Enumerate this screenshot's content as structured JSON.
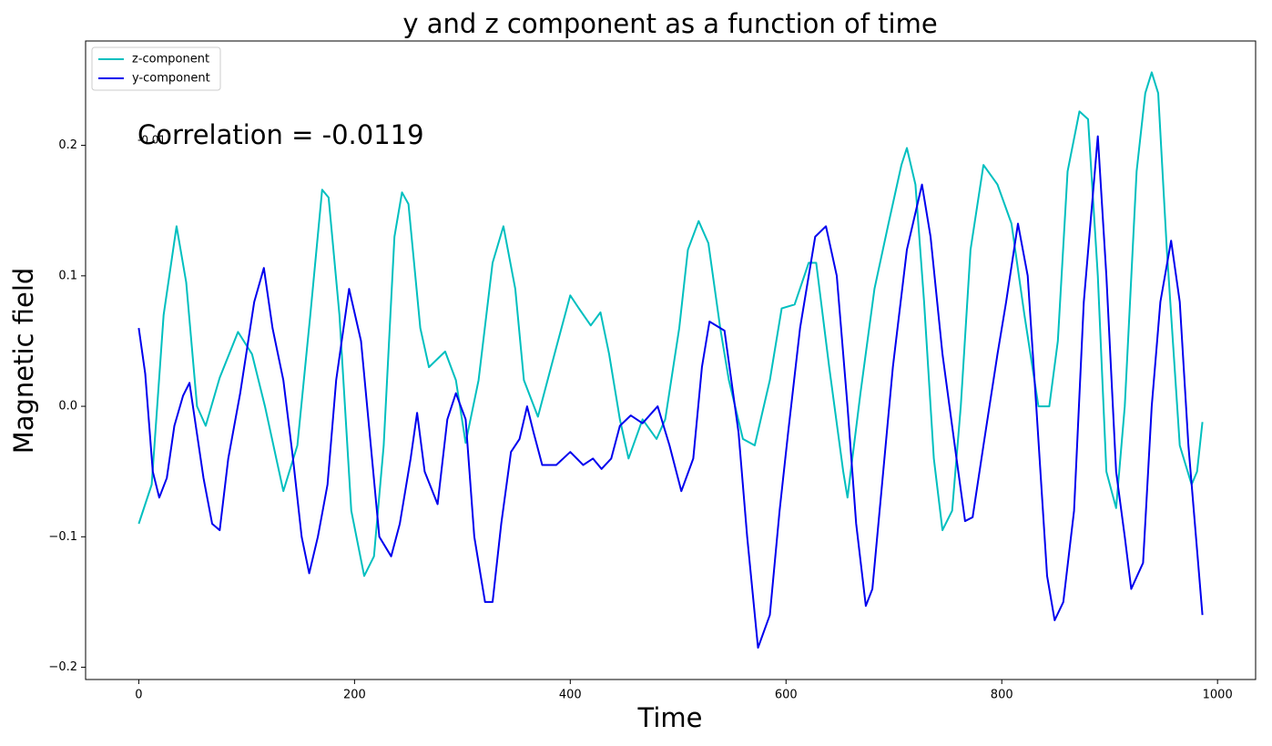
{
  "chart_data": {
    "type": "line",
    "title": "y and z component as a  function of time",
    "xlabel": "Time",
    "ylabel": "Magnetic field",
    "annotations": [
      "Correlation = -0.0119",
      "-0.01"
    ],
    "legend": "upper left",
    "xlim": [
      -49.3,
      1035.3
    ],
    "xticks": [
      0,
      200,
      400,
      600,
      800,
      1000
    ],
    "ylim": [
      -0.2094,
      0.28
    ],
    "yticks": [
      {
        "value": -0.2,
        "label": "−0.2"
      },
      {
        "value": -0.1,
        "label": "−0.1"
      },
      {
        "value": 0,
        "label": "0.0"
      },
      0.1,
      0.2
    ],
    "series": [
      {
        "name": "z-component",
        "color": "#00bfbf",
        "x": [
          0,
          12,
          23,
          35,
          44,
          54,
          62,
          75,
          92,
          105,
          117,
          134,
          147,
          159,
          170,
          176,
          186,
          197,
          209,
          218,
          227,
          237,
          244,
          250,
          261,
          269,
          284,
          294,
          303,
          315,
          328,
          338,
          349,
          357,
          370,
          379,
          387,
          400,
          408,
          419,
          428,
          436,
          446,
          454,
          467,
          480,
          488,
          501,
          509,
          519,
          528,
          539,
          547,
          560,
          571,
          585,
          596,
          608,
          621,
          628,
          640,
          653,
          657,
          669,
          682,
          695,
          707,
          712,
          720,
          728,
          737,
          745,
          754,
          762,
          771,
          783,
          796,
          809,
          821,
          834,
          844,
          852,
          861,
          872,
          880,
          889,
          897,
          906,
          914,
          925,
          933,
          939,
          945,
          953,
          965,
          976,
          981,
          986
        ],
        "values": [
          -0.09,
          -0.06,
          0.07,
          0.138,
          0.095,
          0.0,
          -0.015,
          0.022,
          0.057,
          0.04,
          0.0,
          -0.065,
          -0.03,
          0.07,
          0.166,
          0.16,
          0.07,
          -0.08,
          -0.13,
          -0.115,
          -0.03,
          0.13,
          0.164,
          0.155,
          0.06,
          0.03,
          0.042,
          0.02,
          -0.028,
          0.02,
          0.11,
          0.138,
          0.09,
          0.02,
          -0.008,
          0.02,
          0.045,
          0.085,
          0.075,
          0.062,
          0.072,
          0.04,
          -0.01,
          -0.04,
          -0.01,
          -0.025,
          -0.01,
          0.06,
          0.12,
          0.142,
          0.125,
          0.06,
          0.02,
          -0.025,
          -0.03,
          0.02,
          0.075,
          0.078,
          0.11,
          0.11,
          0.03,
          -0.05,
          -0.07,
          0.01,
          0.09,
          0.14,
          0.185,
          0.198,
          0.17,
          0.08,
          -0.04,
          -0.095,
          -0.08,
          0.0,
          0.12,
          0.185,
          0.17,
          0.14,
          0.07,
          0.0,
          0.0,
          0.05,
          0.18,
          0.226,
          0.22,
          0.1,
          -0.05,
          -0.078,
          0.0,
          0.18,
          0.24,
          0.256,
          0.24,
          0.12,
          -0.03,
          -0.06,
          -0.05,
          -0.012
        ]
      },
      {
        "name": "y-component",
        "color": "#0000ee",
        "x": [
          0,
          6,
          13,
          19,
          26,
          33,
          41,
          47,
          52,
          60,
          68,
          75,
          83,
          94,
          107,
          116,
          124,
          134,
          143,
          151,
          158,
          166,
          175,
          183,
          195,
          206,
          214,
          223,
          234,
          242,
          252,
          258,
          265,
          277,
          286,
          294,
          303,
          311,
          321,
          328,
          336,
          345,
          353,
          360,
          366,
          374,
          387,
          400,
          412,
          421,
          429,
          438,
          446,
          456,
          467,
          481,
          492,
          503,
          514,
          522,
          529,
          543,
          556,
          564,
          574,
          585,
          594,
          602,
          613,
          627,
          637,
          647,
          657,
          665,
          674,
          680,
          689,
          699,
          712,
          726,
          734,
          745,
          758,
          766,
          773,
          783,
          796,
          804,
          815,
          824,
          832,
          842,
          849,
          857,
          867,
          876,
          889,
          897,
          906,
          914,
          920,
          931,
          939,
          947,
          957,
          965,
          973,
          986
        ],
        "values": [
          0.06,
          0.025,
          -0.05,
          -0.07,
          -0.055,
          -0.015,
          0.008,
          0.018,
          -0.01,
          -0.055,
          -0.09,
          -0.095,
          -0.04,
          0.01,
          0.08,
          0.106,
          0.06,
          0.02,
          -0.04,
          -0.1,
          -0.128,
          -0.1,
          -0.06,
          0.02,
          0.09,
          0.05,
          -0.02,
          -0.1,
          -0.115,
          -0.09,
          -0.04,
          -0.005,
          -0.05,
          -0.075,
          -0.01,
          0.01,
          -0.01,
          -0.1,
          -0.15,
          -0.15,
          -0.09,
          -0.035,
          -0.025,
          0.0,
          -0.02,
          -0.045,
          -0.045,
          -0.035,
          -0.045,
          -0.04,
          -0.048,
          -0.04,
          -0.015,
          -0.007,
          -0.013,
          0.0,
          -0.03,
          -0.065,
          -0.04,
          0.03,
          0.065,
          0.058,
          -0.02,
          -0.1,
          -0.185,
          -0.16,
          -0.08,
          -0.02,
          0.06,
          0.13,
          0.138,
          0.1,
          0.0,
          -0.09,
          -0.153,
          -0.14,
          -0.06,
          0.03,
          0.12,
          0.17,
          0.13,
          0.04,
          -0.04,
          -0.088,
          -0.085,
          -0.03,
          0.04,
          0.08,
          0.14,
          0.1,
          0.0,
          -0.13,
          -0.164,
          -0.15,
          -0.08,
          0.08,
          0.207,
          0.1,
          -0.05,
          -0.1,
          -0.14,
          -0.12,
          0.0,
          0.08,
          0.127,
          0.08,
          -0.03,
          -0.16
        ]
      }
    ]
  }
}
